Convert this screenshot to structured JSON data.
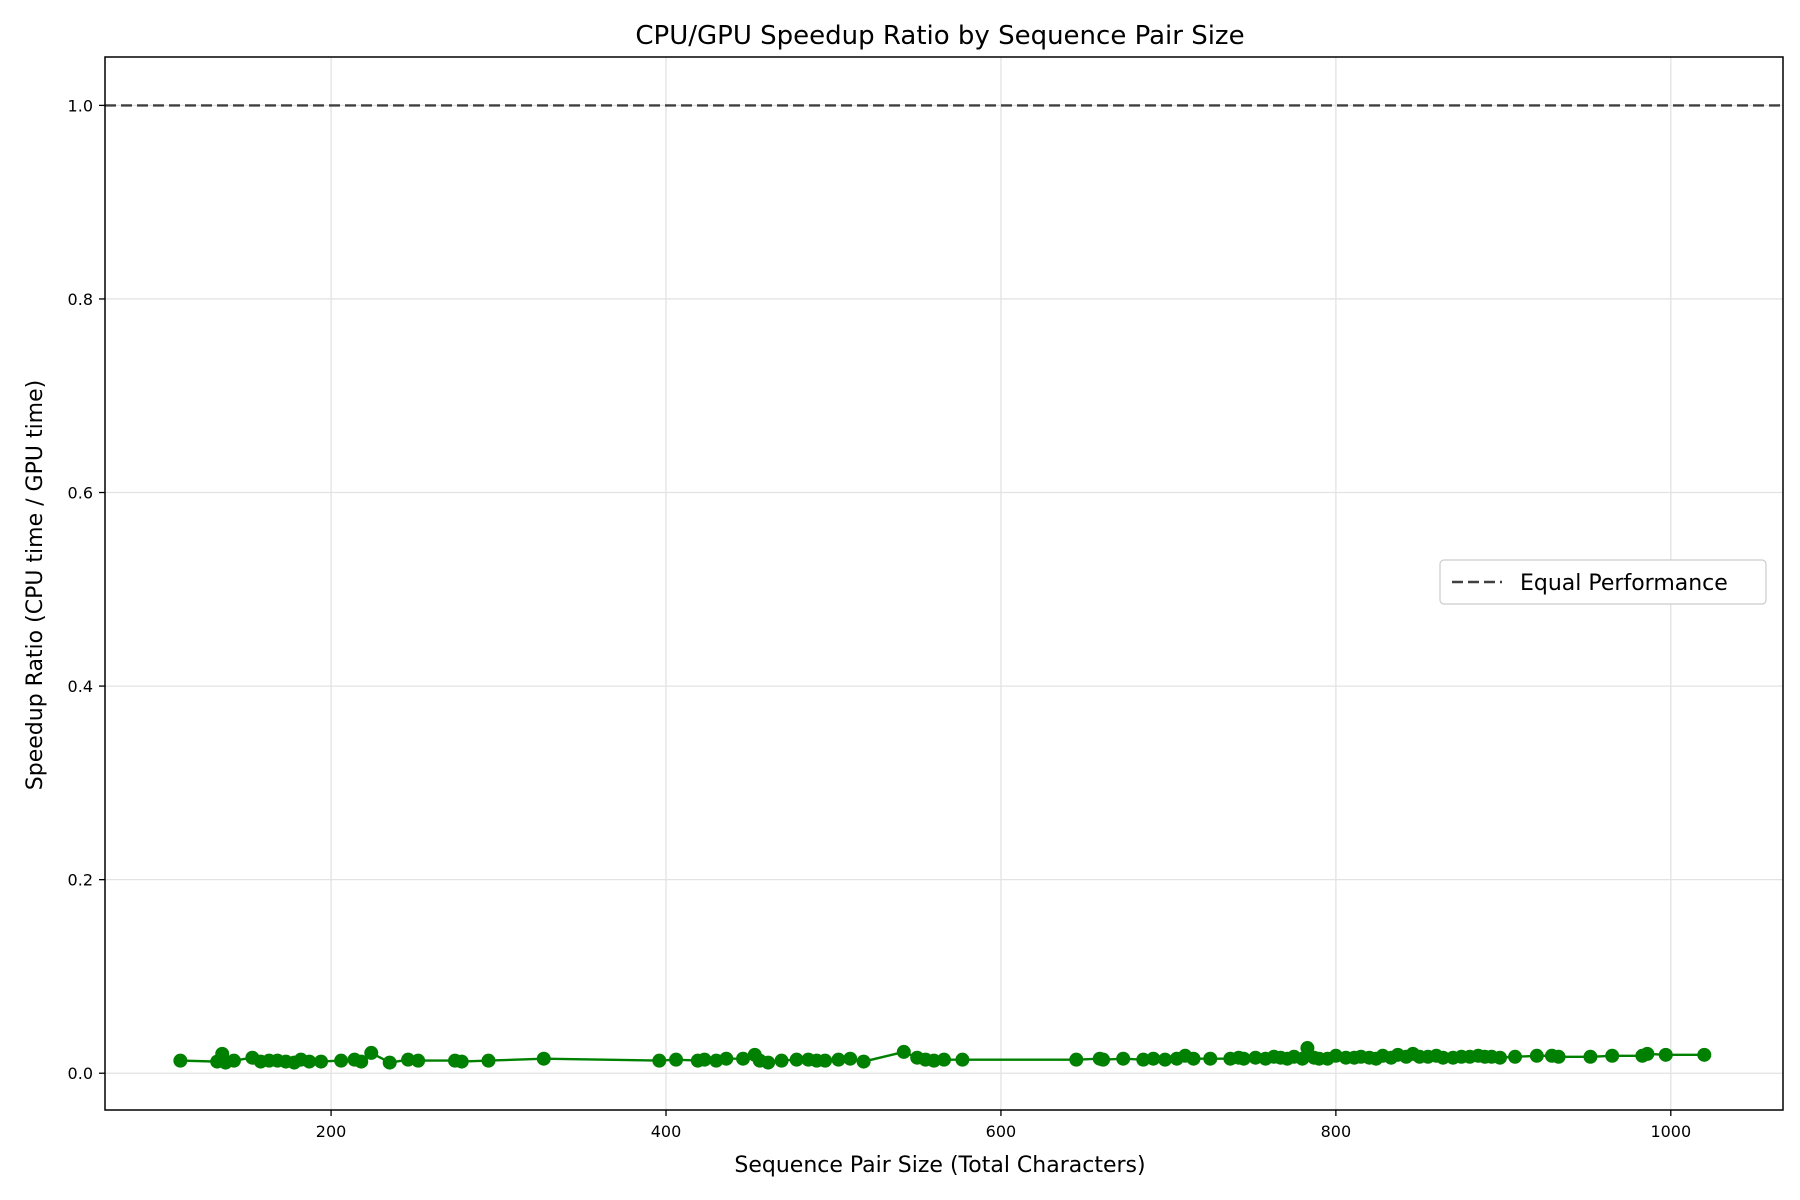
{
  "chart_data": {
    "type": "line",
    "title": "CPU/GPU Speedup Ratio by Sequence Pair Size",
    "xlabel": "Sequence Pair Size (Total Characters)",
    "ylabel": "Speedup Ratio (CPU time / GPU time)",
    "xlim": [
      65,
      1067
    ],
    "ylim": [
      -0.038,
      1.05
    ],
    "xticks": [
      200,
      400,
      600,
      800,
      1000
    ],
    "xtick_labels": [
      "200",
      "400",
      "600",
      "800",
      "1000"
    ],
    "yticks": [
      0.0,
      0.2,
      0.4,
      0.6,
      0.8,
      1.0
    ],
    "ytick_labels": [
      "0.0",
      "0.2",
      "0.4",
      "0.6",
      "0.8",
      "1.0"
    ],
    "grid": true,
    "legend_position": "center-right",
    "reference_line": {
      "name": "Equal Performance",
      "y": 1.0,
      "style": "dashed",
      "color": "#404040"
    },
    "series": [
      {
        "color": "#008000",
        "x": [
          110,
          132,
          135,
          137,
          142,
          153,
          158,
          163,
          168,
          173,
          178,
          182,
          187,
          194,
          206,
          214,
          218,
          224,
          235,
          246,
          252,
          274,
          278,
          294,
          327,
          396,
          406,
          419,
          423,
          430,
          436,
          446,
          453,
          456,
          461,
          469,
          478,
          485,
          490,
          495,
          503,
          510,
          518,
          542,
          550,
          555,
          560,
          566,
          577,
          645,
          659,
          661,
          673,
          685,
          691,
          698,
          705,
          710,
          715,
          725,
          737,
          742,
          745,
          752,
          758,
          763,
          767,
          771,
          775,
          780,
          783,
          787,
          790,
          795,
          800,
          806,
          811,
          815,
          820,
          824,
          828,
          833,
          837,
          842,
          846,
          850,
          855,
          860,
          864,
          870,
          875,
          880,
          885,
          889,
          893,
          898,
          907,
          920,
          929,
          933,
          952,
          965,
          983,
          986,
          997,
          1020
        ],
        "y": [
          0.013,
          0.012,
          0.02,
          0.011,
          0.013,
          0.016,
          0.012,
          0.013,
          0.013,
          0.012,
          0.011,
          0.014,
          0.012,
          0.012,
          0.013,
          0.014,
          0.012,
          0.021,
          0.011,
          0.014,
          0.013,
          0.013,
          0.012,
          0.013,
          0.015,
          0.013,
          0.014,
          0.013,
          0.014,
          0.013,
          0.015,
          0.015,
          0.019,
          0.013,
          0.011,
          0.013,
          0.014,
          0.014,
          0.013,
          0.013,
          0.014,
          0.015,
          0.012,
          0.022,
          0.016,
          0.014,
          0.013,
          0.014,
          0.014,
          0.014,
          0.015,
          0.014,
          0.015,
          0.014,
          0.015,
          0.014,
          0.015,
          0.018,
          0.015,
          0.015,
          0.015,
          0.016,
          0.015,
          0.016,
          0.015,
          0.017,
          0.016,
          0.015,
          0.017,
          0.015,
          0.026,
          0.016,
          0.015,
          0.015,
          0.018,
          0.016,
          0.016,
          0.017,
          0.016,
          0.015,
          0.018,
          0.016,
          0.019,
          0.017,
          0.02,
          0.017,
          0.017,
          0.018,
          0.016,
          0.016,
          0.017,
          0.017,
          0.018,
          0.017,
          0.017,
          0.016,
          0.017,
          0.018,
          0.018,
          0.017,
          0.017,
          0.018,
          0.018,
          0.02,
          0.019,
          0.019
        ]
      }
    ]
  }
}
